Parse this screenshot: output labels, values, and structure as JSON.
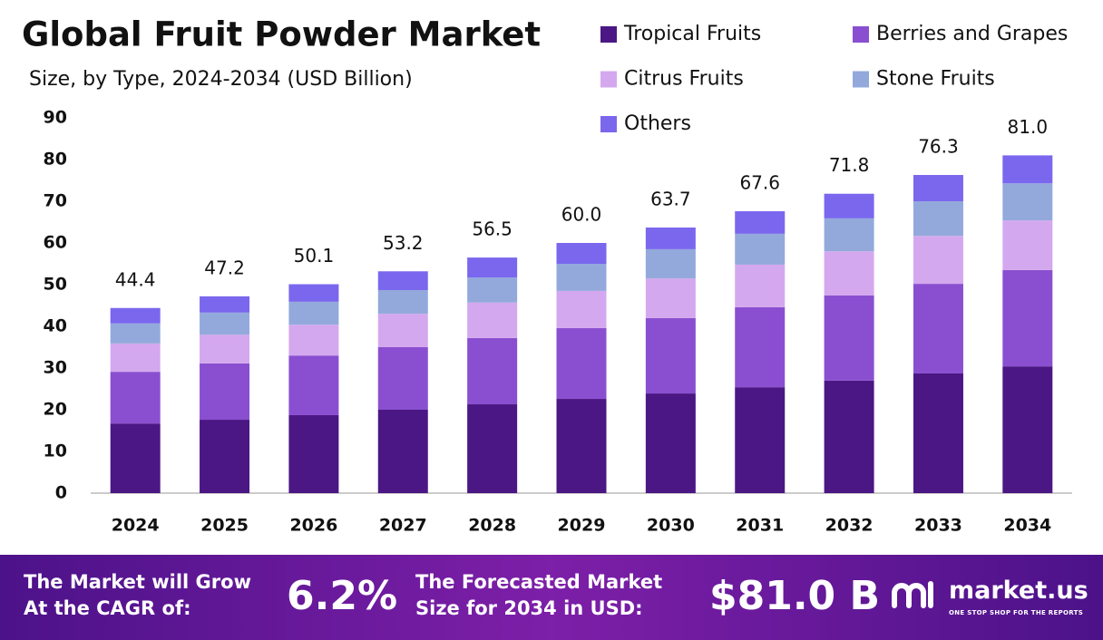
{
  "chart_data": {
    "type": "stacked-bar",
    "title": "Global Fruit Powder Market",
    "subtitle": "Size, by Type, 2024-2034 (USD Billion)",
    "categories": [
      "2024",
      "2025",
      "2026",
      "2027",
      "2028",
      "2029",
      "2030",
      "2031",
      "2032",
      "2033",
      "2034"
    ],
    "series": [
      {
        "name": "Tropical Fruits",
        "color": "#4b1784",
        "values": [
          16.7,
          17.6,
          18.7,
          20.0,
          21.3,
          22.6,
          23.9,
          25.4,
          27.0,
          28.7,
          30.4
        ]
      },
      {
        "name": "Berries and Grapes",
        "color": "#8a4fd0",
        "values": [
          12.4,
          13.5,
          14.3,
          15.0,
          15.9,
          17.0,
          18.1,
          19.2,
          20.4,
          21.5,
          23.1
        ]
      },
      {
        "name": "Citrus Fruits",
        "color": "#d4a8ee",
        "values": [
          6.8,
          6.9,
          7.4,
          8.0,
          8.5,
          8.9,
          9.5,
          10.2,
          10.6,
          11.5,
          11.9
        ]
      },
      {
        "name": "Stone Fruits",
        "color": "#93a9dc",
        "values": [
          4.8,
          5.3,
          5.5,
          5.7,
          6.0,
          6.5,
          7.0,
          7.4,
          7.9,
          8.3,
          8.9
        ]
      },
      {
        "name": "Others",
        "color": "#7a67ee",
        "values": [
          3.7,
          3.9,
          4.2,
          4.5,
          4.8,
          5.0,
          5.2,
          5.4,
          5.9,
          6.3,
          6.7
        ]
      }
    ],
    "totals": [
      44.4,
      47.2,
      50.1,
      53.2,
      56.5,
      60.0,
      63.7,
      67.6,
      71.8,
      76.3,
      81.0
    ],
    "total_labels": [
      "44.4",
      "47.2",
      "50.1",
      "53.2",
      "56.5",
      "60.0",
      "63.7",
      "67.6",
      "71.8",
      "76.3",
      "81.0"
    ],
    "ylim": [
      0,
      90
    ],
    "yticks": [
      0,
      10,
      20,
      30,
      40,
      50,
      60,
      70,
      80,
      90
    ]
  },
  "footer": {
    "cagr_text": [
      "The Market will Grow",
      "At the CAGR of:"
    ],
    "cagr_value": "6.2%",
    "forecast_text": [
      "The Forecasted Market",
      "Size for 2034 in USD:"
    ],
    "forecast_value": "$81.0 B",
    "brand": "market.us",
    "tagline": "ONE STOP SHOP FOR THE REPORTS"
  }
}
